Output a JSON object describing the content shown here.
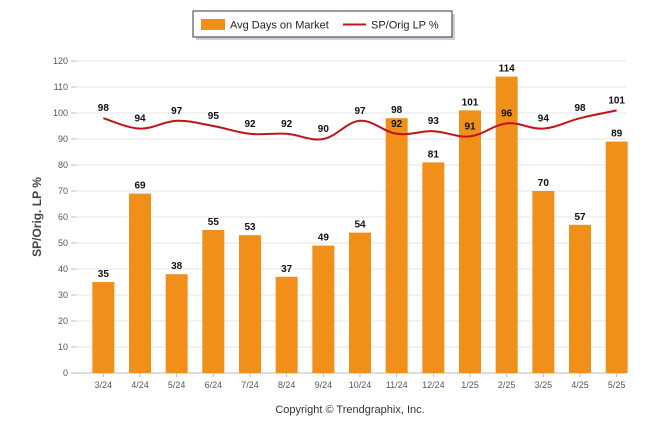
{
  "chart_data": {
    "type": "bar",
    "categories": [
      "3/24",
      "4/24",
      "5/24",
      "6/24",
      "7/24",
      "8/24",
      "9/24",
      "10/24",
      "11/24",
      "12/24",
      "1/25",
      "2/25",
      "3/25",
      "4/25",
      "5/25"
    ],
    "series": [
      {
        "name": "Avg Days on Market",
        "type": "bar",
        "color": "#F0901A",
        "values": [
          35,
          69,
          38,
          55,
          53,
          37,
          49,
          54,
          98,
          81,
          101,
          114,
          70,
          57,
          89
        ]
      },
      {
        "name": "SP/Orig LP %",
        "type": "line",
        "color": "#C0141C",
        "values": [
          98,
          94,
          97,
          95,
          92,
          92,
          90,
          97,
          92,
          93,
          91,
          96,
          94,
          98,
          101
        ]
      }
    ],
    "ylabel": "SP/Orig. LP %",
    "ylim": [
      0,
      120
    ],
    "yticks": [
      0,
      10,
      20,
      30,
      40,
      50,
      60,
      70,
      80,
      90,
      100,
      110,
      120
    ],
    "grid": true,
    "legend_position": "top-center",
    "footer": "Copyright © Trendgraphix, Inc."
  }
}
